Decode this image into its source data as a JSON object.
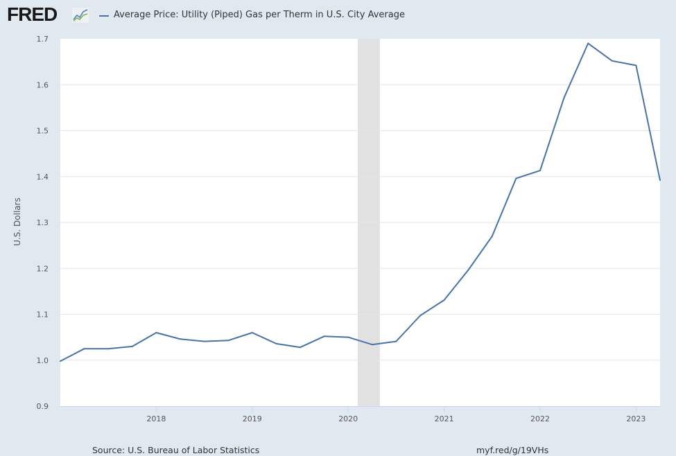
{
  "header": {
    "logo": "FRED",
    "logo_icon": "chart-line-icon",
    "legend_label": "Average Price: Utility (Piped) Gas per Therm in U.S. City Average"
  },
  "footer": {
    "source": "Source: U.S. Bureau of Labor Statistics",
    "link": "myf.red/g/19VHs"
  },
  "colors": {
    "series": "#4572a7",
    "background": "#e1e9f0",
    "plot": "#ffffff",
    "recession": "#e1e1e1",
    "grid": "#e6e6e6"
  },
  "chart_data": {
    "type": "line",
    "title": "Average Price: Utility (Piped) Gas per Therm in U.S. City Average",
    "xlabel": "",
    "ylabel": "U.S. Dollars",
    "ylim": [
      0.9,
      1.7
    ],
    "xlim": [
      2017.0,
      2023.25
    ],
    "yticks": [
      "0.9",
      "1.0",
      "1.1",
      "1.2",
      "1.3",
      "1.4",
      "1.5",
      "1.6",
      "1.7"
    ],
    "xticks": [
      "2018",
      "2019",
      "2020",
      "2021",
      "2022",
      "2023"
    ],
    "grid": true,
    "legend": "top-left",
    "recessions": [
      {
        "start": 2020.1,
        "end": 2020.33
      }
    ],
    "series": [
      {
        "name": "Average Price: Utility (Piped) Gas per Therm in U.S. City Average",
        "x": [
          2017.0,
          2017.25,
          2017.5,
          2017.75,
          2018.0,
          2018.25,
          2018.5,
          2018.75,
          2019.0,
          2019.25,
          2019.5,
          2019.75,
          2020.0,
          2020.25,
          2020.5,
          2020.75,
          2021.0,
          2021.25,
          2021.5,
          2021.75,
          2022.0,
          2022.25,
          2022.5,
          2022.75,
          2023.0,
          2023.25
        ],
        "values": [
          0.998,
          1.025,
          1.025,
          1.03,
          1.06,
          1.046,
          1.041,
          1.043,
          1.06,
          1.036,
          1.028,
          1.052,
          1.05,
          1.034,
          1.041,
          1.097,
          1.131,
          1.196,
          1.27,
          1.396,
          1.413,
          1.572,
          1.69,
          1.652,
          1.642,
          1.392
        ]
      }
    ]
  }
}
